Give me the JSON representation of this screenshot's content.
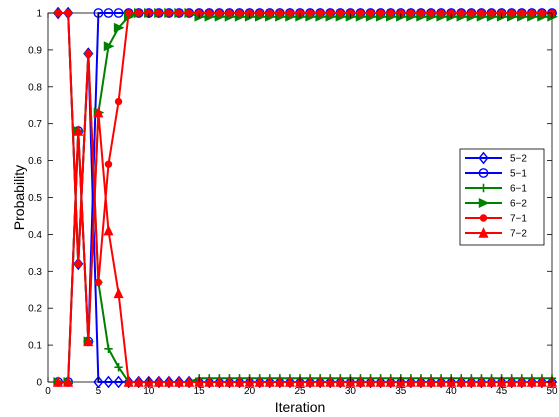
{
  "chart_data": {
    "type": "line",
    "title": "",
    "xlabel": "Iteration",
    "ylabel": "Probability",
    "xlim": [
      0,
      50
    ],
    "ylim": [
      0,
      1
    ],
    "xticks": [
      0,
      5,
      10,
      15,
      20,
      25,
      30,
      35,
      40,
      45,
      50
    ],
    "xtick_labels": [
      "0",
      "5",
      "10",
      "15",
      "20",
      "25",
      "30",
      "35",
      "40",
      "45",
      "50"
    ],
    "yticks": [
      0,
      0.1,
      0.2,
      0.3,
      0.4,
      0.5,
      0.6,
      0.7,
      0.8,
      0.9,
      1
    ],
    "ytick_labels": [
      "0",
      "0.1",
      "0.2",
      "0.3",
      "0.4",
      "0.5",
      "0.6",
      "0.7",
      "0.8",
      "0.9",
      "1"
    ],
    "grid": false,
    "legend_position": "right",
    "x": [
      1,
      2,
      3,
      4,
      5,
      6,
      7,
      8,
      9,
      10,
      11,
      12,
      13,
      14,
      15,
      16,
      17,
      18,
      19,
      20,
      21,
      22,
      23,
      24,
      25,
      26,
      27,
      28,
      29,
      30,
      31,
      32,
      33,
      34,
      35,
      36,
      37,
      38,
      39,
      40,
      41,
      42,
      43,
      44,
      45,
      46,
      47,
      48,
      49,
      50
    ],
    "series": [
      {
        "name": "5−2",
        "color": "#0000ff",
        "marker": "diamond",
        "values": [
          1,
          1,
          0.32,
          0.89,
          0,
          0,
          0,
          0,
          0,
          0,
          0,
          0,
          0,
          0,
          0,
          0,
          0,
          0,
          0,
          0,
          0,
          0,
          0,
          0,
          0,
          0,
          0,
          0,
          0,
          0,
          0,
          0,
          0,
          0,
          0,
          0,
          0,
          0,
          0,
          0,
          0,
          0,
          0,
          0,
          0,
          0,
          0,
          0,
          0,
          0
        ]
      },
      {
        "name": "5−1",
        "color": "#0000ff",
        "marker": "circle",
        "values": [
          0,
          0,
          0.68,
          0.11,
          1,
          1,
          1,
          1,
          1,
          1,
          1,
          1,
          1,
          1,
          1,
          1,
          1,
          1,
          1,
          1,
          1,
          1,
          1,
          1,
          1,
          1,
          1,
          1,
          1,
          1,
          1,
          1,
          1,
          1,
          1,
          1,
          1,
          1,
          1,
          1,
          1,
          1,
          1,
          1,
          1,
          1,
          1,
          1,
          1,
          1
        ]
      },
      {
        "name": "6−1",
        "color": "#008000",
        "marker": "plus",
        "values": [
          1,
          1,
          0.32,
          0.89,
          0.27,
          0.09,
          0.04,
          0,
          0,
          0,
          0,
          0,
          0,
          0,
          0.01,
          0.01,
          0.01,
          0.01,
          0.01,
          0.01,
          0.01,
          0.01,
          0.01,
          0.01,
          0.01,
          0.01,
          0.01,
          0.01,
          0.01,
          0.01,
          0.01,
          0.01,
          0.01,
          0.01,
          0.01,
          0.01,
          0.01,
          0.01,
          0.01,
          0.01,
          0.01,
          0.01,
          0.01,
          0.01,
          0.01,
          0.01,
          0.01,
          0.01,
          0.01,
          0.01
        ]
      },
      {
        "name": "6−2",
        "color": "#008000",
        "marker": "triangle-right",
        "values": [
          0,
          0,
          0.68,
          0.11,
          0.73,
          0.91,
          0.96,
          0.99,
          1,
          1,
          1,
          1,
          1,
          1,
          0.99,
          0.99,
          0.99,
          0.99,
          0.99,
          0.99,
          0.99,
          0.99,
          0.99,
          0.99,
          0.99,
          0.99,
          0.99,
          0.99,
          0.99,
          0.99,
          0.99,
          0.99,
          0.99,
          0.99,
          0.99,
          0.99,
          0.99,
          0.99,
          0.99,
          0.99,
          0.99,
          0.99,
          0.99,
          0.99,
          0.99,
          0.99,
          0.99,
          0.99,
          0.99,
          0.99
        ]
      },
      {
        "name": "7−1",
        "color": "#ff0000",
        "marker": "dot",
        "values": [
          1,
          1,
          0.32,
          0.89,
          0.27,
          0.59,
          0.76,
          1,
          1,
          1,
          1,
          1,
          1,
          1,
          1,
          1,
          1,
          1,
          1,
          1,
          1,
          1,
          1,
          1,
          1,
          1,
          1,
          1,
          1,
          1,
          1,
          1,
          1,
          1,
          1,
          1,
          1,
          1,
          1,
          1,
          1,
          1,
          1,
          1,
          1,
          1,
          1,
          1,
          1,
          1
        ]
      },
      {
        "name": "7−2",
        "color": "#ff0000",
        "marker": "triangle-up",
        "values": [
          0,
          0,
          0.68,
          0.11,
          0.73,
          0.41,
          0.24,
          0,
          0,
          0,
          0,
          0,
          0,
          0,
          0,
          0,
          0,
          0,
          0,
          0,
          0,
          0,
          0,
          0,
          0,
          0,
          0,
          0,
          0,
          0,
          0,
          0,
          0,
          0,
          0,
          0,
          0,
          0,
          0,
          0,
          0,
          0,
          0,
          0,
          0,
          0,
          0,
          0,
          0,
          0
        ]
      }
    ]
  }
}
